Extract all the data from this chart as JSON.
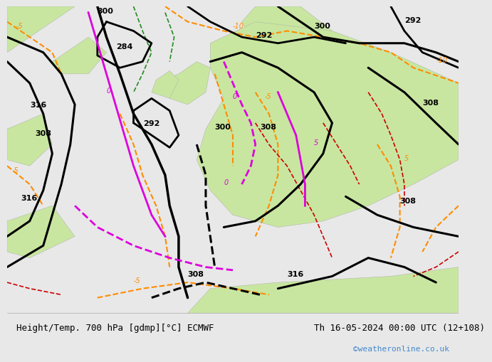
{
  "title_left": "Height/Temp. 700 hPa [gdmp][°C] ECMWF",
  "title_right": "Th 16-05-2024 00:00 UTC (12+108)",
  "credit": "©weatheronline.co.uk",
  "bg_color": "#e8e8e8",
  "land_color": "#c8e6a0",
  "sea_color": "#d0e8f0",
  "bottom_bar_color": "#f0f0f0",
  "title_fontsize": 9,
  "credit_color": "#4488cc"
}
